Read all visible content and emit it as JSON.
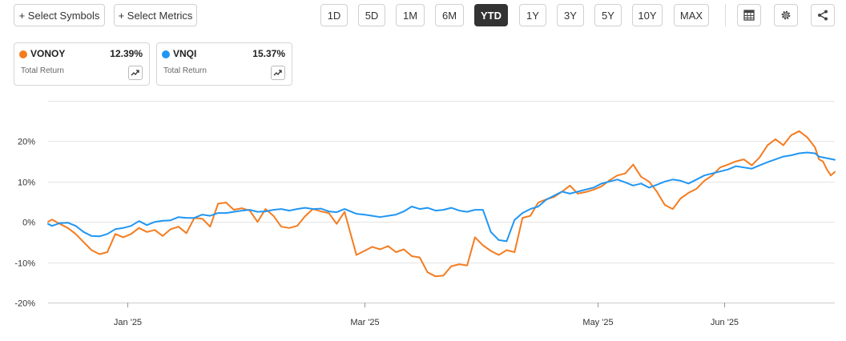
{
  "toolbar": {
    "select_symbols": "+ Select Symbols",
    "select_metrics": "+ Select Metrics",
    "ranges": [
      "1D",
      "5D",
      "1M",
      "6M",
      "YTD",
      "1Y",
      "3Y",
      "5Y",
      "10Y",
      "MAX"
    ],
    "active_range": "YTD",
    "icons": [
      "table-icon",
      "gear-icon",
      "share-icon"
    ]
  },
  "cards": [
    {
      "symbol": "VONOY",
      "value": "12.39%",
      "metric": "Total Return",
      "color": "#f47c20"
    },
    {
      "symbol": "VNQI",
      "value": "15.37%",
      "metric": "Total Return",
      "color": "#2196f3"
    }
  ],
  "chart_data": {
    "type": "line",
    "title": "",
    "xlabel": "",
    "ylabel": "",
    "x_tick_labels": [
      "Jan '25",
      "Mar '25",
      "May '25",
      "Jun '25"
    ],
    "x_tick_dates": [
      "2025-01-02",
      "2025-03-03",
      "2025-05-01",
      "2025-06-02"
    ],
    "y_tick_labels": [
      "20%",
      "10%",
      "0%",
      "-10%",
      "-20%"
    ],
    "y_ticks": [
      20,
      10,
      0,
      -10,
      -20
    ],
    "ylim": [
      -20,
      30
    ],
    "xlim": [
      "2024-12-13",
      "2025-06-30"
    ],
    "grid": "horizontal",
    "x_unit": "date",
    "y_unit": "percent",
    "series": [
      {
        "name": "VONOY",
        "color": "#f47c20",
        "points": [
          [
            "2024-12-13",
            0
          ],
          [
            "2024-12-14",
            0.6
          ],
          [
            "2024-12-16",
            -0.5
          ],
          [
            "2024-12-18",
            -1.5
          ],
          [
            "2024-12-20",
            -3
          ],
          [
            "2024-12-22",
            -5
          ],
          [
            "2024-12-24",
            -7
          ],
          [
            "2024-12-26",
            -8
          ],
          [
            "2024-12-28",
            -7.5
          ],
          [
            "2024-12-30",
            -3
          ],
          [
            "2025-01-01",
            -3.8
          ],
          [
            "2025-01-03",
            -3
          ],
          [
            "2025-01-05",
            -1.5
          ],
          [
            "2025-01-07",
            -2.5
          ],
          [
            "2025-01-09",
            -2
          ],
          [
            "2025-01-11",
            -3.5
          ],
          [
            "2025-01-13",
            -1.8
          ],
          [
            "2025-01-15",
            -1.2
          ],
          [
            "2025-01-17",
            -2.8
          ],
          [
            "2025-01-19",
            1
          ],
          [
            "2025-01-21",
            0.8
          ],
          [
            "2025-01-23",
            -1.2
          ],
          [
            "2025-01-25",
            4.5
          ],
          [
            "2025-01-27",
            4.8
          ],
          [
            "2025-01-29",
            3
          ],
          [
            "2025-01-31",
            3.4
          ],
          [
            "2025-02-02",
            2.8
          ],
          [
            "2025-02-04",
            0
          ],
          [
            "2025-02-06",
            3.2
          ],
          [
            "2025-02-08",
            1.5
          ],
          [
            "2025-02-10",
            -1.2
          ],
          [
            "2025-02-12",
            -1.5
          ],
          [
            "2025-02-14",
            -1
          ],
          [
            "2025-02-16",
            1.4
          ],
          [
            "2025-02-18",
            3.2
          ],
          [
            "2025-02-20",
            2.6
          ],
          [
            "2025-02-22",
            2.2
          ],
          [
            "2025-02-24",
            -0.5
          ],
          [
            "2025-02-26",
            2.5
          ],
          [
            "2025-03-01",
            -8.2
          ],
          [
            "2025-03-03",
            -7.2
          ],
          [
            "2025-03-05",
            -6.2
          ],
          [
            "2025-03-07",
            -6.8
          ],
          [
            "2025-03-09",
            -6
          ],
          [
            "2025-03-11",
            -7.5
          ],
          [
            "2025-03-13",
            -6.8
          ],
          [
            "2025-03-15",
            -8.5
          ],
          [
            "2025-03-17",
            -8.8
          ],
          [
            "2025-03-19",
            -12.5
          ],
          [
            "2025-03-21",
            -13.5
          ],
          [
            "2025-03-23",
            -13.3
          ],
          [
            "2025-03-25",
            -11
          ],
          [
            "2025-03-27",
            -10.5
          ],
          [
            "2025-03-29",
            -10.8
          ],
          [
            "2025-03-31",
            -3.8
          ],
          [
            "2025-04-02",
            -5.8
          ],
          [
            "2025-04-04",
            -7.2
          ],
          [
            "2025-04-06",
            -8.2
          ],
          [
            "2025-04-08",
            -7
          ],
          [
            "2025-04-10",
            -7.5
          ],
          [
            "2025-04-12",
            1
          ],
          [
            "2025-04-14",
            1.5
          ],
          [
            "2025-04-16",
            4.8
          ],
          [
            "2025-04-18",
            5.6
          ],
          [
            "2025-04-20",
            6.2
          ],
          [
            "2025-04-22",
            7.5
          ],
          [
            "2025-04-24",
            9
          ],
          [
            "2025-04-26",
            7
          ],
          [
            "2025-04-28",
            7.4
          ],
          [
            "2025-04-30",
            8
          ],
          [
            "2025-05-02",
            8.8
          ],
          [
            "2025-05-04",
            10.3
          ],
          [
            "2025-05-06",
            11.5
          ],
          [
            "2025-05-08",
            12
          ],
          [
            "2025-05-10",
            14.2
          ],
          [
            "2025-05-12",
            11.2
          ],
          [
            "2025-05-14",
            10
          ],
          [
            "2025-05-16",
            7.5
          ],
          [
            "2025-05-18",
            4.2
          ],
          [
            "2025-05-20",
            3.2
          ],
          [
            "2025-05-22",
            5.8
          ],
          [
            "2025-05-24",
            7.2
          ],
          [
            "2025-05-26",
            8.2
          ],
          [
            "2025-05-28",
            10.2
          ],
          [
            "2025-05-30",
            11.5
          ],
          [
            "2025-06-01",
            13.5
          ],
          [
            "2025-06-03",
            14.2
          ],
          [
            "2025-06-05",
            15
          ],
          [
            "2025-06-07",
            15.5
          ],
          [
            "2025-06-09",
            14
          ],
          [
            "2025-06-11",
            16
          ],
          [
            "2025-06-13",
            19
          ],
          [
            "2025-06-15",
            20.5
          ],
          [
            "2025-06-17",
            19
          ],
          [
            "2025-06-19",
            21.5
          ],
          [
            "2025-06-21",
            22.5
          ],
          [
            "2025-06-23",
            21
          ],
          [
            "2025-06-25",
            18.5
          ],
          [
            "2025-06-26",
            15.5
          ],
          [
            "2025-06-27",
            15
          ],
          [
            "2025-06-28",
            13
          ],
          [
            "2025-06-29",
            11.5
          ],
          [
            "2025-06-30",
            12.4
          ]
        ]
      },
      {
        "name": "VNQI",
        "color": "#2196f3",
        "points": [
          [
            "2024-12-13",
            -0.5
          ],
          [
            "2024-12-14",
            -1
          ],
          [
            "2024-12-16",
            -0.3
          ],
          [
            "2024-12-18",
            -0.2
          ],
          [
            "2024-12-20",
            -1
          ],
          [
            "2024-12-22",
            -2.5
          ],
          [
            "2024-12-24",
            -3.5
          ],
          [
            "2024-12-26",
            -3.6
          ],
          [
            "2024-12-28",
            -3
          ],
          [
            "2024-12-30",
            -1.8
          ],
          [
            "2025-01-01",
            -1.5
          ],
          [
            "2025-01-03",
            -1
          ],
          [
            "2025-01-05",
            0.2
          ],
          [
            "2025-01-07",
            -0.8
          ],
          [
            "2025-01-09",
            0
          ],
          [
            "2025-01-11",
            0.3
          ],
          [
            "2025-01-13",
            0.4
          ],
          [
            "2025-01-15",
            1.2
          ],
          [
            "2025-01-17",
            1
          ],
          [
            "2025-01-19",
            1
          ],
          [
            "2025-01-21",
            1.8
          ],
          [
            "2025-01-23",
            1.5
          ],
          [
            "2025-01-25",
            2.2
          ],
          [
            "2025-01-27",
            2.2
          ],
          [
            "2025-01-29",
            2.5
          ],
          [
            "2025-01-31",
            2.8
          ],
          [
            "2025-02-02",
            3
          ],
          [
            "2025-02-04",
            2.5
          ],
          [
            "2025-02-06",
            2.6
          ],
          [
            "2025-02-08",
            3
          ],
          [
            "2025-02-10",
            3.2
          ],
          [
            "2025-02-12",
            2.8
          ],
          [
            "2025-02-14",
            3.2
          ],
          [
            "2025-02-16",
            3.5
          ],
          [
            "2025-02-18",
            3.2
          ],
          [
            "2025-02-20",
            3.3
          ],
          [
            "2025-02-22",
            2.6
          ],
          [
            "2025-02-24",
            2.4
          ],
          [
            "2025-02-26",
            3.2
          ],
          [
            "2025-03-01",
            2
          ],
          [
            "2025-03-03",
            1.8
          ],
          [
            "2025-03-05",
            1.5
          ],
          [
            "2025-03-07",
            1.2
          ],
          [
            "2025-03-09",
            1.5
          ],
          [
            "2025-03-11",
            1.8
          ],
          [
            "2025-03-13",
            2.6
          ],
          [
            "2025-03-15",
            3.8
          ],
          [
            "2025-03-17",
            3.2
          ],
          [
            "2025-03-19",
            3.5
          ],
          [
            "2025-03-21",
            2.8
          ],
          [
            "2025-03-23",
            3
          ],
          [
            "2025-03-25",
            3.5
          ],
          [
            "2025-03-27",
            2.8
          ],
          [
            "2025-03-29",
            2.5
          ],
          [
            "2025-03-31",
            3
          ],
          [
            "2025-04-02",
            3
          ],
          [
            "2025-04-04",
            -2.5
          ],
          [
            "2025-04-06",
            -4.5
          ],
          [
            "2025-04-08",
            -4.8
          ],
          [
            "2025-04-10",
            0.5
          ],
          [
            "2025-04-12",
            2.2
          ],
          [
            "2025-04-14",
            3.2
          ],
          [
            "2025-04-16",
            3.8
          ],
          [
            "2025-04-18",
            5.5
          ],
          [
            "2025-04-20",
            6.5
          ],
          [
            "2025-04-22",
            7.5
          ],
          [
            "2025-04-24",
            7
          ],
          [
            "2025-04-26",
            7.5
          ],
          [
            "2025-04-28",
            8
          ],
          [
            "2025-04-30",
            8.5
          ],
          [
            "2025-05-02",
            9.5
          ],
          [
            "2025-05-04",
            10
          ],
          [
            "2025-05-06",
            10.5
          ],
          [
            "2025-05-08",
            9.8
          ],
          [
            "2025-05-10",
            9
          ],
          [
            "2025-05-12",
            9.5
          ],
          [
            "2025-05-14",
            8.5
          ],
          [
            "2025-05-16",
            9.2
          ],
          [
            "2025-05-18",
            10
          ],
          [
            "2025-05-20",
            10.5
          ],
          [
            "2025-05-22",
            10.2
          ],
          [
            "2025-05-24",
            9.5
          ],
          [
            "2025-05-26",
            10.5
          ],
          [
            "2025-05-28",
            11.5
          ],
          [
            "2025-05-30",
            12
          ],
          [
            "2025-06-01",
            12.5
          ],
          [
            "2025-06-03",
            13
          ],
          [
            "2025-06-05",
            13.8
          ],
          [
            "2025-06-07",
            13.5
          ],
          [
            "2025-06-09",
            13.2
          ],
          [
            "2025-06-11",
            14
          ],
          [
            "2025-06-13",
            14.8
          ],
          [
            "2025-06-15",
            15.5
          ],
          [
            "2025-06-17",
            16.2
          ],
          [
            "2025-06-19",
            16.5
          ],
          [
            "2025-06-21",
            17
          ],
          [
            "2025-06-23",
            17.2
          ],
          [
            "2025-06-25",
            17
          ],
          [
            "2025-06-26",
            16.2
          ],
          [
            "2025-06-27",
            16
          ],
          [
            "2025-06-28",
            15.8
          ],
          [
            "2025-06-29",
            15.6
          ],
          [
            "2025-06-30",
            15.4
          ]
        ]
      }
    ]
  }
}
